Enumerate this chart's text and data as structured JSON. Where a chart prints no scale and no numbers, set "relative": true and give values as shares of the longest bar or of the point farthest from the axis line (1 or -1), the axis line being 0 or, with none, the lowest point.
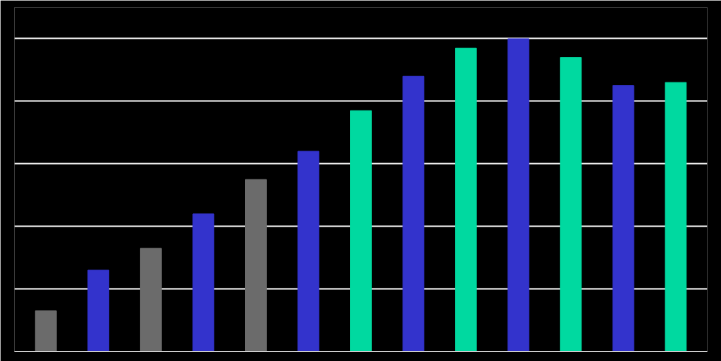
{
  "chart_data": {
    "type": "bar",
    "relative": true,
    "categories": [
      null,
      null,
      null,
      null,
      null,
      null,
      null,
      null,
      null,
      null,
      null,
      null,
      null
    ],
    "values": [
      0.13,
      0.26,
      0.33,
      0.44,
      0.55,
      0.64,
      0.77,
      0.88,
      0.97,
      1,
      0.94,
      0.85,
      0.86
    ],
    "colors": [
      "#6b6b6b",
      "#3333cc",
      "#6b6b6b",
      "#3333cc",
      "#6b6b6b",
      "#3333cc",
      "#00d9a0",
      "#3333cc",
      "#00d9a0",
      "#3333cc",
      "#00d9a0",
      "#3333cc",
      "#00d9a0"
    ],
    "grid": "y"
  }
}
